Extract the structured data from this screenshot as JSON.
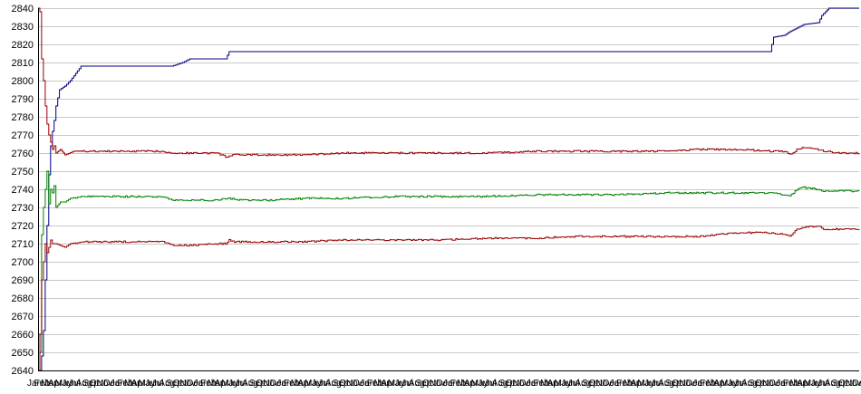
{
  "chart_data": {
    "type": "line",
    "title": "",
    "xlabel": "",
    "ylabel": "",
    "ylim": [
      2640,
      2840
    ],
    "yticks": [
      2640,
      2650,
      2660,
      2670,
      2680,
      2690,
      2700,
      2710,
      2720,
      2730,
      2740,
      2750,
      2760,
      2770,
      2780,
      2790,
      2800,
      2810,
      2820,
      2830,
      2840
    ],
    "grid": true,
    "legend": "none",
    "x_count": 920,
    "x_tick_labels": [
      "Jan",
      "Feb",
      "Mar",
      "Apr",
      "May",
      "Jun",
      "Jul",
      "Aug",
      "Sep",
      "Oct",
      "Nov",
      "Dec"
    ],
    "x_tick_years": 10,
    "colors": {
      "max": "#000080",
      "upper": "#990000",
      "mid": "#008000",
      "lower": "#990000",
      "grid": "#c8c8c8"
    },
    "series": [
      {
        "key": "max",
        "color": "#000080",
        "points": [
          [
            0,
            2640
          ],
          [
            2,
            2640
          ],
          [
            4,
            2648
          ],
          [
            6,
            2662
          ],
          [
            8,
            2690
          ],
          [
            10,
            2720
          ],
          [
            12,
            2748
          ],
          [
            14,
            2764
          ],
          [
            16,
            2772
          ],
          [
            18,
            2778
          ],
          [
            20,
            2786
          ],
          [
            24,
            2795
          ],
          [
            30,
            2797
          ],
          [
            36,
            2800
          ],
          [
            42,
            2804
          ],
          [
            48,
            2808
          ],
          [
            150,
            2808
          ],
          [
            162,
            2810
          ],
          [
            170,
            2812
          ],
          [
            210,
            2812
          ],
          [
            214,
            2816
          ],
          [
            820,
            2816
          ],
          [
            824,
            2824
          ],
          [
            836,
            2825
          ],
          [
            842,
            2827
          ],
          [
            850,
            2829
          ],
          [
            858,
            2831
          ],
          [
            874,
            2832
          ],
          [
            878,
            2836
          ],
          [
            886,
            2840
          ],
          [
            920,
            2840
          ]
        ]
      },
      {
        "key": "upper",
        "color": "#990000",
        "points": [
          [
            0,
            2840
          ],
          [
            2,
            2838
          ],
          [
            4,
            2812
          ],
          [
            6,
            2800
          ],
          [
            8,
            2786
          ],
          [
            10,
            2776
          ],
          [
            12,
            2770
          ],
          [
            14,
            2766
          ],
          [
            16,
            2762
          ],
          [
            18,
            2764
          ],
          [
            20,
            2760
          ],
          [
            25,
            2762
          ],
          [
            30,
            2759
          ],
          [
            40,
            2761
          ],
          [
            60,
            2761
          ],
          [
            100,
            2761
          ],
          [
            140,
            2761
          ],
          [
            150,
            2760
          ],
          [
            170,
            2760
          ],
          [
            200,
            2760
          ],
          [
            210,
            2758
          ],
          [
            220,
            2759
          ],
          [
            260,
            2759
          ],
          [
            300,
            2759
          ],
          [
            340,
            2760
          ],
          [
            400,
            2760
          ],
          [
            450,
            2760
          ],
          [
            500,
            2760
          ],
          [
            560,
            2761
          ],
          [
            600,
            2761
          ],
          [
            650,
            2761
          ],
          [
            700,
            2761
          ],
          [
            740,
            2762
          ],
          [
            790,
            2762
          ],
          [
            820,
            2761
          ],
          [
            836,
            2761
          ],
          [
            842,
            2759
          ],
          [
            850,
            2762
          ],
          [
            858,
            2763
          ],
          [
            874,
            2762
          ],
          [
            880,
            2761
          ],
          [
            900,
            2760
          ],
          [
            920,
            2760
          ]
        ]
      },
      {
        "key": "mid",
        "color": "#008000",
        "points": [
          [
            0,
            2660
          ],
          [
            2,
            2650
          ],
          [
            4,
            2715
          ],
          [
            6,
            2730
          ],
          [
            8,
            2740
          ],
          [
            10,
            2750
          ],
          [
            12,
            2732
          ],
          [
            14,
            2740
          ],
          [
            16,
            2738
          ],
          [
            18,
            2742
          ],
          [
            20,
            2730
          ],
          [
            25,
            2733
          ],
          [
            30,
            2733
          ],
          [
            36,
            2735
          ],
          [
            48,
            2736
          ],
          [
            100,
            2736
          ],
          [
            140,
            2736
          ],
          [
            150,
            2734
          ],
          [
            170,
            2734
          ],
          [
            200,
            2734
          ],
          [
            210,
            2735
          ],
          [
            230,
            2734
          ],
          [
            260,
            2734
          ],
          [
            300,
            2735
          ],
          [
            340,
            2735
          ],
          [
            400,
            2736
          ],
          [
            450,
            2736
          ],
          [
            500,
            2736
          ],
          [
            560,
            2737
          ],
          [
            600,
            2737
          ],
          [
            650,
            2737
          ],
          [
            700,
            2738
          ],
          [
            740,
            2738
          ],
          [
            790,
            2738
          ],
          [
            820,
            2738
          ],
          [
            836,
            2737
          ],
          [
            842,
            2736
          ],
          [
            850,
            2740
          ],
          [
            858,
            2741
          ],
          [
            874,
            2740
          ],
          [
            880,
            2739
          ],
          [
            900,
            2739
          ],
          [
            920,
            2739
          ]
        ]
      },
      {
        "key": "lower",
        "color": "#990000",
        "points": [
          [
            0,
            2640
          ],
          [
            2,
            2660
          ],
          [
            4,
            2690
          ],
          [
            6,
            2700
          ],
          [
            8,
            2710
          ],
          [
            10,
            2705
          ],
          [
            12,
            2708
          ],
          [
            14,
            2712
          ],
          [
            16,
            2710
          ],
          [
            20,
            2710
          ],
          [
            25,
            2709
          ],
          [
            30,
            2708
          ],
          [
            36,
            2710
          ],
          [
            48,
            2711
          ],
          [
            100,
            2711
          ],
          [
            140,
            2711
          ],
          [
            150,
            2709
          ],
          [
            170,
            2709
          ],
          [
            200,
            2710
          ],
          [
            210,
            2710
          ],
          [
            214,
            2712
          ],
          [
            220,
            2711
          ],
          [
            260,
            2711
          ],
          [
            300,
            2711
          ],
          [
            340,
            2712
          ],
          [
            400,
            2712
          ],
          [
            450,
            2712
          ],
          [
            500,
            2713
          ],
          [
            560,
            2713
          ],
          [
            600,
            2714
          ],
          [
            650,
            2714
          ],
          [
            700,
            2714
          ],
          [
            740,
            2714
          ],
          [
            760,
            2715
          ],
          [
            790,
            2716
          ],
          [
            820,
            2716
          ],
          [
            836,
            2715
          ],
          [
            842,
            2714
          ],
          [
            850,
            2718
          ],
          [
            858,
            2719
          ],
          [
            874,
            2720
          ],
          [
            880,
            2718
          ],
          [
            900,
            2718
          ],
          [
            920,
            2718
          ]
        ]
      }
    ]
  }
}
